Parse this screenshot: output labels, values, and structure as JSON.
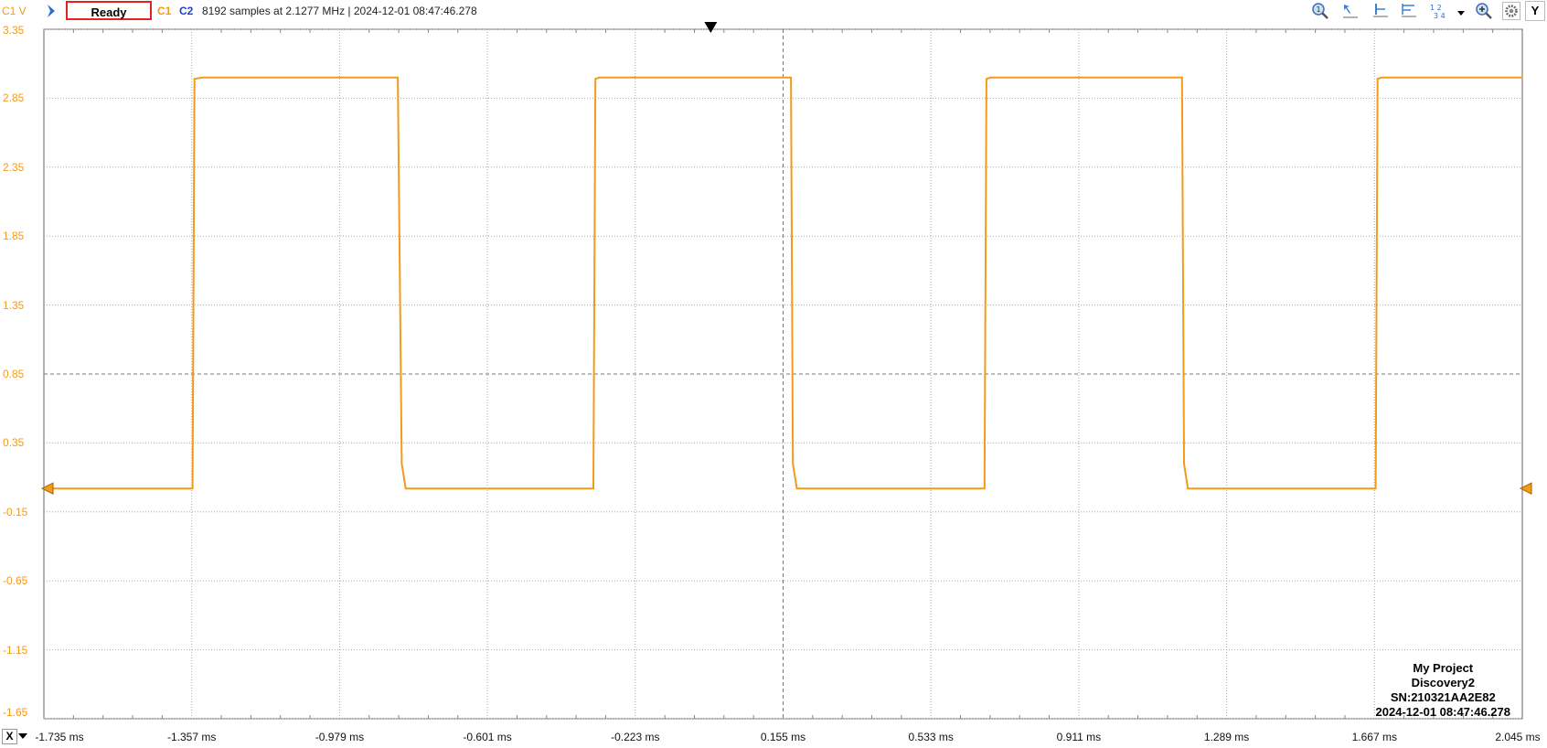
{
  "toolbar": {
    "channel_unit_label": "C1 V",
    "run_state": "Ready",
    "ch1_label": "C1",
    "ch2_label": "C2",
    "status": "8192 samples at 2.1277 MHz  | 2024-12-01 08:47:46.278",
    "y_button": "Y",
    "x_button": "X",
    "icons": [
      "run-arrow-icon",
      "zoom-reset-icon",
      "cursor-icon",
      "horizontal-cursor-icon",
      "multi-cursor-icon",
      "layout-1234-icon",
      "dropdown-icon",
      "zoom-icon",
      "settings-icon"
    ]
  },
  "colors": {
    "trace": "#f39a1b",
    "ch2": "#1f3fd6",
    "ready_border": "#e52222"
  },
  "info_box": {
    "project": "My Project",
    "device": "Discovery2",
    "serial": "SN:210321AA2E82",
    "timestamp": "2024-12-01 08:47:46.278"
  },
  "chart_data": {
    "type": "line",
    "xlabel": "",
    "ylabel": "",
    "y_ticks": [
      "3.35",
      "2.85",
      "2.35",
      "1.85",
      "1.35",
      "0.85",
      "0.35",
      "-0.15",
      "-0.65",
      "-1.15",
      "-1.65"
    ],
    "x_ticks": [
      "-1.735 ms",
      "-1.357 ms",
      "-0.979 ms",
      "-0.601 ms",
      "-0.223 ms",
      "0.155 ms",
      "0.533 ms",
      "0.911 ms",
      "1.289 ms",
      "1.667 ms",
      "2.045 ms"
    ],
    "xlim_ms": [
      -1.735,
      2.045
    ],
    "ylim": [
      -1.65,
      3.35
    ],
    "grid": true,
    "series": [
      {
        "channel": "C1",
        "x": [
          -1.735,
          -1.355,
          -1.35,
          -1.33,
          -0.83,
          -0.82,
          -0.81,
          -0.33,
          -0.325,
          -0.315,
          0.175,
          0.18,
          0.19,
          0.67,
          0.675,
          0.685,
          1.175,
          1.18,
          1.19,
          1.67,
          1.675,
          1.685,
          2.045
        ],
        "y": [
          0.02,
          0.02,
          2.99,
          3.0,
          3.0,
          0.2,
          0.02,
          0.02,
          2.99,
          3.0,
          3.0,
          0.2,
          0.02,
          0.02,
          2.99,
          3.0,
          3.0,
          0.2,
          0.02,
          0.02,
          2.99,
          3.0,
          3.0
        ]
      }
    ]
  }
}
